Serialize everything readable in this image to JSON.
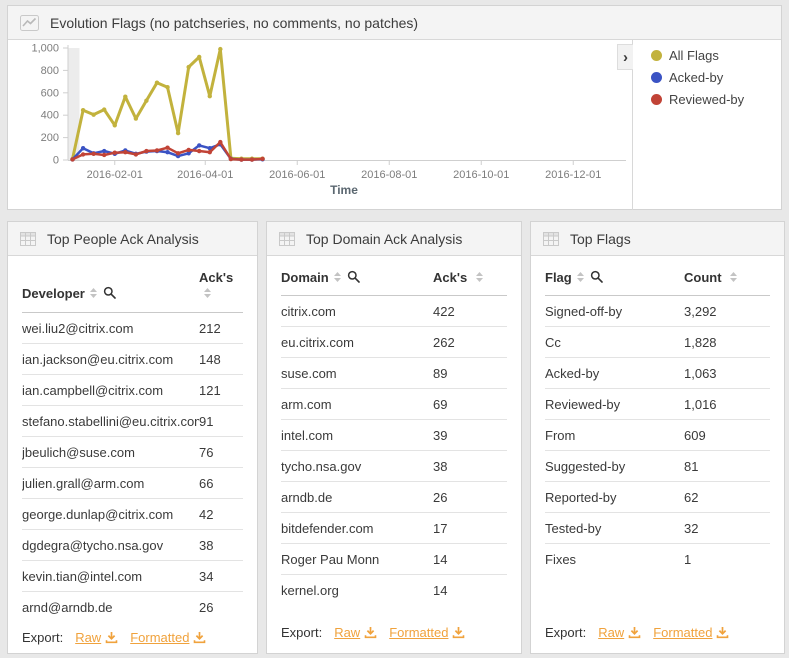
{
  "evolution_panel": {
    "title": "Evolution Flags (no patchseries, no comments, no patches)"
  },
  "icons": {
    "panel_chart": "line-chart",
    "panel_table": "grid",
    "sort": "sort-carets",
    "search": "magnifier",
    "download": "download-tray",
    "legend_toggle_glyph": "›"
  },
  "chart_data": {
    "type": "line",
    "title": "Evolution Flags (no patchseries, no comments, no patches)",
    "xlabel": "Time",
    "ylabel": "",
    "ylim": [
      0,
      1000
    ],
    "yticks": [
      0,
      200,
      400,
      600,
      800,
      1000
    ],
    "ytick_labels": [
      "0",
      "200",
      "400",
      "600",
      "800",
      "1,000"
    ],
    "xtick_labels": [
      "2016-02-01",
      "2016-04-01",
      "2016-06-01",
      "2016-08-01",
      "2016-10-01",
      "2016-12-01"
    ],
    "x_range": [
      "2016-01-01",
      "2017-01-01"
    ],
    "grid": false,
    "legend_position": "right",
    "x": [
      "2016-01-04",
      "2016-01-11",
      "2016-01-18",
      "2016-01-25",
      "2016-02-01",
      "2016-02-08",
      "2016-02-15",
      "2016-02-22",
      "2016-02-29",
      "2016-03-07",
      "2016-03-14",
      "2016-03-21",
      "2016-03-28",
      "2016-04-04",
      "2016-04-11",
      "2016-04-18",
      "2016-04-25",
      "2016-05-02",
      "2016-05-09"
    ],
    "series": [
      {
        "name": "All Flags",
        "color": "#c2b23d",
        "values": [
          8,
          445,
          405,
          450,
          310,
          565,
          370,
          530,
          690,
          650,
          240,
          830,
          920,
          570,
          990,
          15,
          12,
          12,
          12
        ]
      },
      {
        "name": "Acked-by",
        "color": "#3b53c4",
        "values": [
          5,
          105,
          60,
          80,
          55,
          85,
          55,
          75,
          80,
          70,
          35,
          60,
          130,
          105,
          140,
          10,
          4,
          4,
          6
        ]
      },
      {
        "name": "Reviewed-by",
        "color": "#c14336",
        "values": [
          5,
          50,
          55,
          45,
          65,
          70,
          50,
          80,
          85,
          110,
          60,
          90,
          80,
          70,
          160,
          8,
          4,
          4,
          10
        ]
      }
    ]
  },
  "tables": [
    {
      "title": "Top People Ack Analysis",
      "columns": [
        "Developer",
        "Ack's"
      ],
      "rows": [
        [
          "wei.liu2@citrix.com",
          "212"
        ],
        [
          "ian.jackson@eu.citrix.com",
          "148"
        ],
        [
          "ian.campbell@citrix.com",
          "121"
        ],
        [
          "stefano.stabellini@eu.citrix.com",
          "91"
        ],
        [
          "jbeulich@suse.com",
          "76"
        ],
        [
          "julien.grall@arm.com",
          "66"
        ],
        [
          "george.dunlap@citrix.com",
          "42"
        ],
        [
          "dgdegra@tycho.nsa.gov",
          "38"
        ],
        [
          "kevin.tian@intel.com",
          "34"
        ],
        [
          "arnd@arndb.de",
          "26"
        ]
      ],
      "export_label": "Export:",
      "export_links": [
        "Raw",
        "Formatted"
      ]
    },
    {
      "title": "Top Domain Ack Analysis",
      "columns": [
        "Domain",
        "Ack's"
      ],
      "rows": [
        [
          "citrix.com",
          "422"
        ],
        [
          "eu.citrix.com",
          "262"
        ],
        [
          "suse.com",
          "89"
        ],
        [
          "arm.com",
          "69"
        ],
        [
          "intel.com",
          "39"
        ],
        [
          "tycho.nsa.gov",
          "38"
        ],
        [
          "arndb.de",
          "26"
        ],
        [
          "bitdefender.com",
          "17"
        ],
        [
          "Roger Pau Monn",
          "14"
        ],
        [
          "kernel.org",
          "14"
        ]
      ],
      "export_label": "Export:",
      "export_links": [
        "Raw",
        "Formatted"
      ]
    },
    {
      "title": "Top Flags",
      "columns": [
        "Flag",
        "Count"
      ],
      "rows": [
        [
          "Signed-off-by",
          "3,292"
        ],
        [
          "Cc",
          "1,828"
        ],
        [
          "Acked-by",
          "1,063"
        ],
        [
          "Reviewed-by",
          "1,016"
        ],
        [
          "From",
          "609"
        ],
        [
          "Suggested-by",
          "81"
        ],
        [
          "Reported-by",
          "62"
        ],
        [
          "Tested-by",
          "32"
        ],
        [
          "Fixes",
          "1"
        ]
      ],
      "export_label": "Export:",
      "export_links": [
        "Raw",
        "Formatted"
      ]
    }
  ]
}
